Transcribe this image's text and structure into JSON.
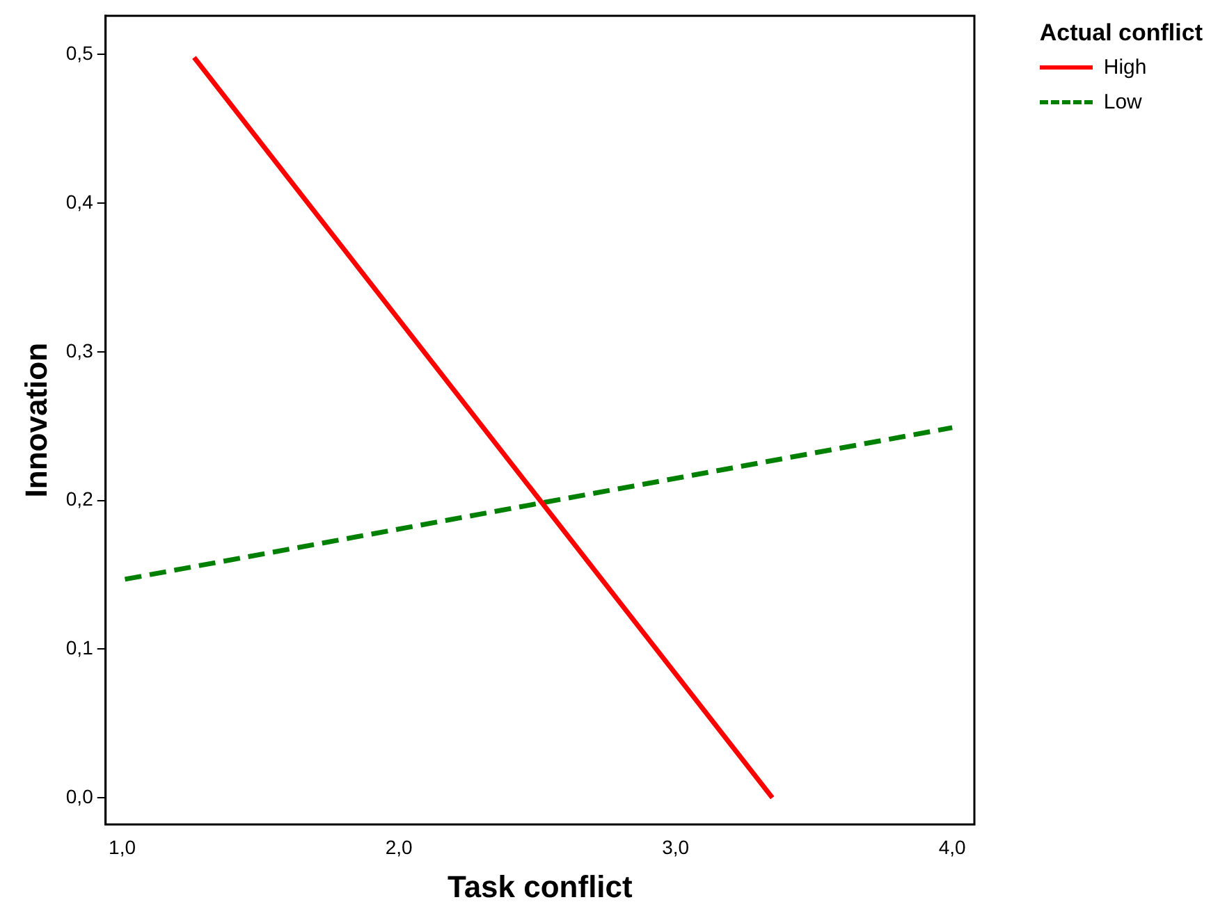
{
  "chart_data": {
    "type": "line",
    "xlabel": "Task conflict",
    "ylabel": "Innovation",
    "legend_title": "Actual conflict",
    "legend": "top right",
    "grid": false,
    "marker": "none",
    "xlim": [
      0.94,
      4.08
    ],
    "ylim": [
      -0.018,
      0.526
    ],
    "xticks": [
      {
        "value": 1,
        "label": "1,0"
      },
      {
        "value": 2,
        "label": "2,0"
      },
      {
        "value": 3,
        "label": "3,0"
      },
      {
        "value": 4,
        "label": "4,0"
      }
    ],
    "yticks": [
      {
        "value": 0,
        "label": "0,0"
      },
      {
        "value": 0.1,
        "label": "0,1"
      },
      {
        "value": 0.2,
        "label": "0,2"
      },
      {
        "value": 0.3,
        "label": "0,3"
      },
      {
        "value": 0.4,
        "label": "0,4"
      },
      {
        "value": 0.5,
        "label": "0,5"
      }
    ],
    "series": [
      {
        "name": "High",
        "color": "#ff0000",
        "line_style": "solid",
        "x": [
          1.26,
          3.35
        ],
        "values": [
          0.498,
          0
        ]
      },
      {
        "name": "Low",
        "color": "#008000",
        "line_style": "dashed",
        "x": [
          1.01,
          4.0
        ],
        "values": [
          0.147,
          0.249
        ]
      }
    ]
  }
}
